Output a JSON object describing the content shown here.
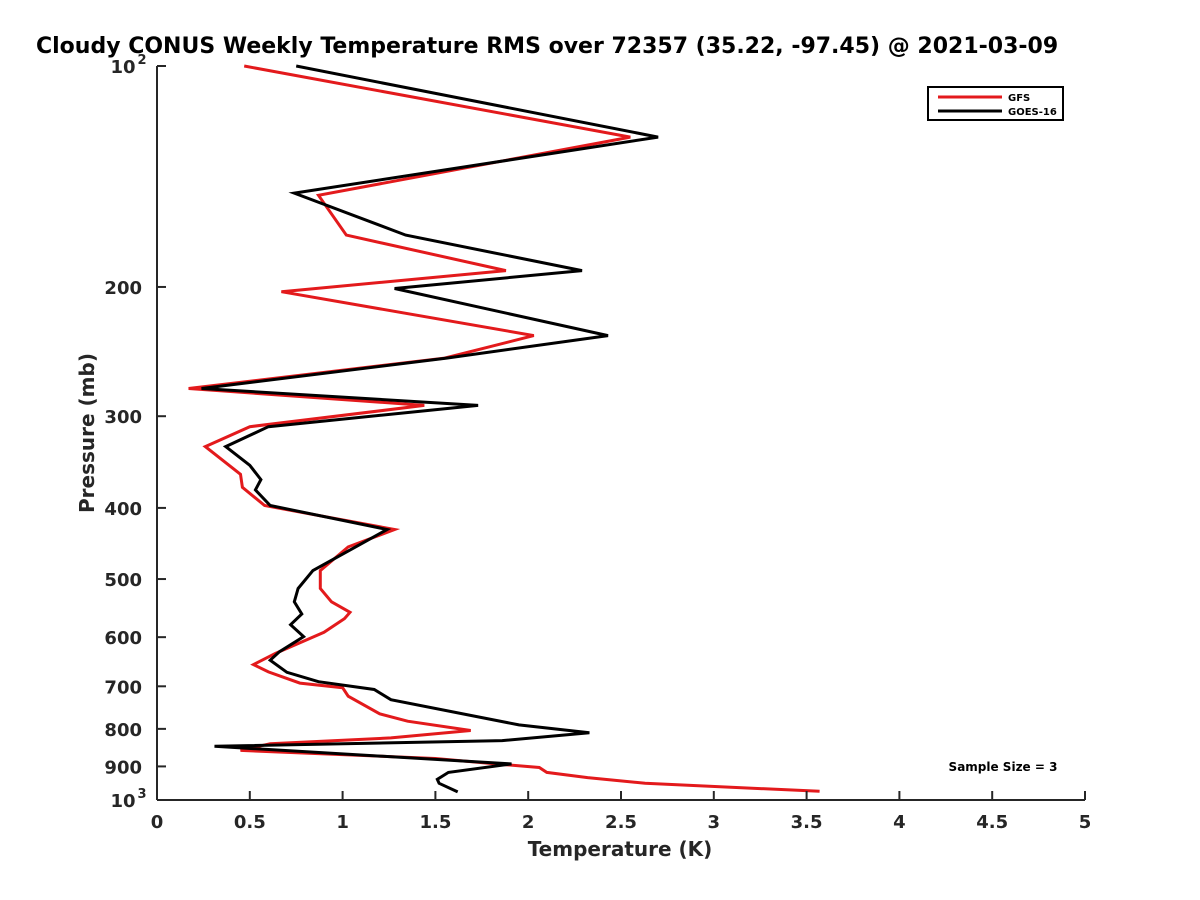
{
  "chart_data": {
    "type": "line",
    "title": "Cloudy CONUS Weekly Temperature RMS over 72357 (35.22, -97.45) @ 2021-03-09",
    "xlabel": "Temperature (K)",
    "ylabel": "Pressure (mb)",
    "xlim": [
      0,
      5
    ],
    "ylim": [
      100,
      1000
    ],
    "y_scale": "log",
    "y_reversed": true,
    "x_ticks": [
      "0",
      "0.5",
      "1",
      "1.5",
      "2",
      "2.5",
      "3",
      "3.5",
      "4",
      "4.5",
      "5"
    ],
    "y_ticks": [
      {
        "value": 100,
        "base": "10",
        "exp": "2"
      },
      {
        "value": 200,
        "label": "200"
      },
      {
        "value": 300,
        "label": "300"
      },
      {
        "value": 400,
        "label": "400"
      },
      {
        "value": 500,
        "label": "500"
      },
      {
        "value": 600,
        "label": "600"
      },
      {
        "value": 700,
        "label": "700"
      },
      {
        "value": 800,
        "label": "800"
      },
      {
        "value": 900,
        "label": "900"
      },
      {
        "value": 1000,
        "base": "10",
        "exp": "3"
      }
    ],
    "legend_position": "top-right",
    "grid": false,
    "annotation": "Sample Size = 3",
    "series": [
      {
        "name": "GFS",
        "color": "#e31a1c",
        "points": [
          [
            0.47,
            100
          ],
          [
            2.55,
            125
          ],
          [
            0.87,
            150
          ],
          [
            1.02,
            170
          ],
          [
            1.88,
            190
          ],
          [
            0.67,
            203
          ],
          [
            2.03,
            233
          ],
          [
            1.55,
            250
          ],
          [
            0.17,
            275
          ],
          [
            1.44,
            290
          ],
          [
            0.5,
            310
          ],
          [
            0.26,
            330
          ],
          [
            0.45,
            360
          ],
          [
            0.46,
            375
          ],
          [
            0.58,
            397
          ],
          [
            1.28,
            428
          ],
          [
            1.03,
            452
          ],
          [
            0.88,
            487
          ],
          [
            0.88,
            515
          ],
          [
            0.94,
            537
          ],
          [
            1.04,
            555
          ],
          [
            1.01,
            566
          ],
          [
            0.9,
            591
          ],
          [
            0.64,
            631
          ],
          [
            0.52,
            654
          ],
          [
            0.6,
            669
          ],
          [
            0.77,
            693
          ],
          [
            1.0,
            703
          ],
          [
            1.03,
            722
          ],
          [
            1.2,
            763
          ],
          [
            1.35,
            781
          ],
          [
            1.69,
            804
          ],
          [
            1.26,
            823
          ],
          [
            0.61,
            838
          ],
          [
            0.45,
            856
          ],
          [
            1.5,
            878
          ],
          [
            1.87,
            895
          ],
          [
            2.06,
            903
          ],
          [
            2.1,
            917
          ],
          [
            2.32,
            932
          ],
          [
            2.63,
            949
          ],
          [
            3.57,
            973
          ]
        ]
      },
      {
        "name": "GOES-16",
        "color": "#000000",
        "points": [
          [
            0.75,
            100
          ],
          [
            2.7,
            125
          ],
          [
            0.74,
            149
          ],
          [
            1.34,
            170
          ],
          [
            2.29,
            190
          ],
          [
            1.28,
            201
          ],
          [
            2.43,
            233
          ],
          [
            1.56,
            250
          ],
          [
            0.24,
            275
          ],
          [
            1.73,
            290
          ],
          [
            0.6,
            310
          ],
          [
            0.37,
            330
          ],
          [
            0.5,
            350
          ],
          [
            0.56,
            366
          ],
          [
            0.53,
            378
          ],
          [
            0.61,
            397
          ],
          [
            1.24,
            428
          ],
          [
            1.07,
            452
          ],
          [
            0.84,
            487
          ],
          [
            0.76,
            515
          ],
          [
            0.74,
            537
          ],
          [
            0.78,
            558
          ],
          [
            0.72,
            577
          ],
          [
            0.79,
            599
          ],
          [
            0.66,
            628
          ],
          [
            0.61,
            645
          ],
          [
            0.7,
            670
          ],
          [
            0.87,
            690
          ],
          [
            1.17,
            707
          ],
          [
            1.26,
            730
          ],
          [
            1.95,
            790
          ],
          [
            2.33,
            810
          ],
          [
            1.86,
            830
          ],
          [
            0.31,
            845
          ],
          [
            1.91,
            893
          ],
          [
            1.57,
            917
          ],
          [
            1.51,
            937
          ],
          [
            1.52,
            949
          ],
          [
            1.62,
            975
          ]
        ]
      }
    ]
  }
}
